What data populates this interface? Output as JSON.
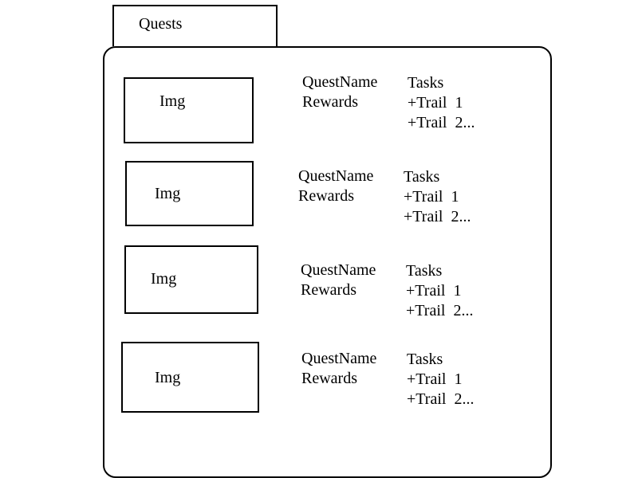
{
  "tab": {
    "label": "Quests"
  },
  "quests": [
    {
      "image_label": "Img",
      "name": "QuestName",
      "rewards": "Rewards",
      "tasks_header": "Tasks",
      "tasks": [
        "+Trail  1",
        "+Trail  2..."
      ]
    },
    {
      "image_label": "Img",
      "name": "QuestName",
      "rewards": "Rewards",
      "tasks_header": "Tasks",
      "tasks": [
        "+Trail  1",
        "+Trail  2..."
      ]
    },
    {
      "image_label": "Img",
      "name": "QuestName",
      "rewards": "Rewards",
      "tasks_header": "Tasks",
      "tasks": [
        "+Trail  1",
        "+Trail  2..."
      ]
    },
    {
      "image_label": "Img",
      "name": "QuestName",
      "rewards": "Rewards",
      "tasks_header": "Tasks",
      "tasks": [
        "+Trail  1",
        "+Trail  2..."
      ]
    }
  ]
}
